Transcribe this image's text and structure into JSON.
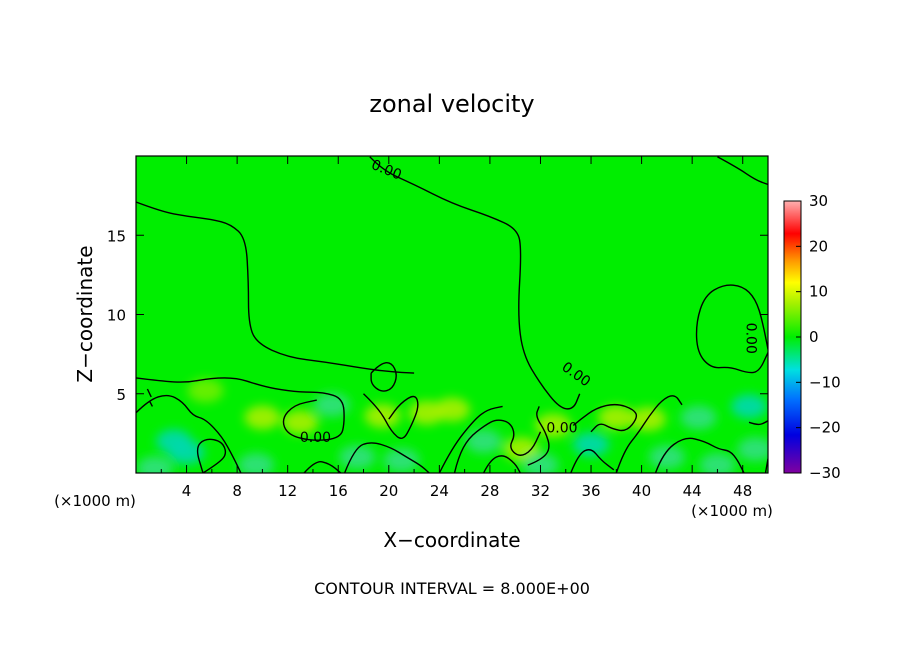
{
  "chart_data": {
    "type": "heatmap",
    "title": "zonal velocity",
    "xlabel": "X−coordinate",
    "ylabel": "Z−coordinate",
    "x_unit_left": "(×1000 m)",
    "x_unit_right": "(×1000 m)",
    "footer": "CONTOUR INTERVAL = 8.000E+00",
    "xlim": [
      0,
      50
    ],
    "ylim": [
      0,
      20
    ],
    "x_ticks": [
      4,
      8,
      12,
      16,
      20,
      24,
      28,
      32,
      36,
      40,
      44,
      48
    ],
    "x_tick_labels": [
      "4",
      "8",
      "12",
      "16",
      "20",
      "24",
      "28",
      "32",
      "36",
      "40",
      "44",
      "48"
    ],
    "y_ticks": [
      5,
      10,
      15
    ],
    "y_tick_labels": [
      "5",
      "10",
      "15"
    ],
    "colorbar": {
      "min": -30,
      "max": 30,
      "ticks": [
        30,
        20,
        10,
        0,
        -10,
        -20,
        -30
      ],
      "tick_labels": [
        "30",
        "20",
        "10",
        "0",
        "−10",
        "−20",
        "−30"
      ]
    },
    "field_background_value": 0,
    "field_background_color": "#00ee00",
    "contour_labels": [
      {
        "text": "0.00",
        "x": 19.8,
        "z": 19.1,
        "angle": 22
      },
      {
        "text": "0.00",
        "x": 14.2,
        "z": 2.2,
        "angle": 0
      },
      {
        "text": "0.00",
        "x": 33.7,
        "z": 2.8,
        "angle": 0
      },
      {
        "text": "0.00",
        "x": 34.8,
        "z": 6.2,
        "angle": 35
      },
      {
        "text": "0.00",
        "x": 48.6,
        "z": 8.5,
        "angle": 90
      }
    ],
    "contours": [
      [
        [
          0,
          17.1
        ],
        [
          2,
          16.5
        ],
        [
          4,
          16.2
        ],
        [
          6,
          16.0
        ],
        [
          7.5,
          15.7
        ],
        [
          8.7,
          14.8
        ],
        [
          8.9,
          12
        ],
        [
          8.9,
          9.5
        ],
        [
          9.5,
          8.2
        ],
        [
          12,
          7.3
        ],
        [
          15,
          7
        ],
        [
          18,
          6.6
        ],
        [
          20,
          6.4
        ],
        [
          22,
          6.3
        ]
      ],
      [
        [
          18.5,
          19.95
        ],
        [
          19.5,
          19.1
        ],
        [
          22,
          18.2
        ],
        [
          25,
          17.0
        ],
        [
          28,
          16.2
        ],
        [
          30.2,
          15.4
        ],
        [
          30.5,
          14
        ],
        [
          30.2,
          10
        ],
        [
          30.6,
          7.5
        ],
        [
          32,
          5.6
        ],
        [
          33.5,
          4.1
        ],
        [
          34.6,
          4.0
        ],
        [
          35.1,
          5.0
        ]
      ],
      [
        [
          46,
          19.95
        ],
        [
          47.5,
          19.3
        ],
        [
          49,
          18.5
        ],
        [
          50,
          18.2
        ]
      ],
      [
        [
          50,
          7.8
        ],
        [
          49.6,
          9.5
        ],
        [
          49,
          11
        ],
        [
          48,
          11.8
        ],
        [
          46.5,
          11.9
        ],
        [
          45,
          11.2
        ],
        [
          44.3,
          9.5
        ],
        [
          44.4,
          7.6
        ],
        [
          45.5,
          6.6
        ],
        [
          47,
          6.7
        ],
        [
          48.4,
          6.3
        ],
        [
          49.3,
          6.4
        ],
        [
          50,
          7.6
        ]
      ],
      [
        [
          0,
          6.0
        ],
        [
          2,
          5.8
        ],
        [
          4,
          5.7
        ],
        [
          6,
          6.0
        ],
        [
          8,
          6.0
        ],
        [
          9.5,
          5.6
        ],
        [
          11,
          5.3
        ],
        [
          13,
          5.1
        ],
        [
          14.8,
          5.1
        ],
        [
          16.4,
          4.7
        ],
        [
          16.5,
          3.2
        ],
        [
          16.2,
          2.2
        ],
        [
          14,
          2.0
        ],
        [
          12,
          2.4
        ],
        [
          11.5,
          3.4
        ],
        [
          12.5,
          4.3
        ],
        [
          14.3,
          4.6
        ]
      ],
      [
        [
          0,
          3.8
        ],
        [
          1,
          4.6
        ],
        [
          2.5,
          5.0
        ],
        [
          3.7,
          4.5
        ],
        [
          4.5,
          3.6
        ],
        [
          5.5,
          3.4
        ],
        [
          6.8,
          2.3
        ],
        [
          7.7,
          1.0
        ],
        [
          8.3,
          0.0
        ]
      ],
      [
        [
          5.3,
          0
        ],
        [
          6.5,
          0.6
        ],
        [
          7.2,
          1.2
        ],
        [
          6.8,
          2.0
        ],
        [
          5.5,
          2.2
        ],
        [
          4.7,
          1.6
        ],
        [
          5.3,
          0
        ]
      ],
      [
        [
          13.3,
          0
        ],
        [
          14.2,
          0.8
        ],
        [
          15.3,
          0.6
        ],
        [
          16.2,
          0
        ]
      ],
      [
        [
          18,
          5.0
        ],
        [
          19.3,
          4.0
        ],
        [
          20.2,
          2.6
        ],
        [
          21.1,
          2.0
        ],
        [
          21.8,
          3.0
        ],
        [
          22.4,
          4.2
        ],
        [
          22.1,
          5.0
        ],
        [
          20.9,
          4.4
        ],
        [
          20.0,
          3.4
        ]
      ],
      [
        [
          16.5,
          0
        ],
        [
          17.3,
          1.6
        ],
        [
          18.6,
          2.0
        ],
        [
          20.2,
          1.6
        ],
        [
          21.4,
          1.0
        ],
        [
          22.5,
          0.5
        ],
        [
          23.2,
          0
        ]
      ],
      [
        [
          18.6,
          6.3
        ],
        [
          19.3,
          6.9
        ],
        [
          20.2,
          7.0
        ],
        [
          20.7,
          6.2
        ],
        [
          20.3,
          5.3
        ],
        [
          19.4,
          5.1
        ],
        [
          18.6,
          5.6
        ],
        [
          18.6,
          6.3
        ]
      ],
      [
        [
          25.2,
          0
        ],
        [
          25.5,
          1.0
        ],
        [
          26.3,
          2.2
        ],
        [
          27.6,
          3.0
        ],
        [
          28.5,
          3.4
        ],
        [
          29.6,
          3.2
        ],
        [
          30.0,
          2.4
        ],
        [
          29.5,
          1.6
        ],
        [
          30.3,
          1.0
        ],
        [
          31.3,
          1.4
        ],
        [
          32.0,
          2.6
        ]
      ],
      [
        [
          24.0,
          0
        ],
        [
          25.0,
          1.6
        ],
        [
          26.8,
          3.4
        ],
        [
          27.8,
          4.0
        ],
        [
          29.0,
          4.2
        ]
      ],
      [
        [
          27.5,
          0
        ],
        [
          28.0,
          0.8
        ],
        [
          29.0,
          1.2
        ],
        [
          30.0,
          0.6
        ],
        [
          30.4,
          0
        ]
      ],
      [
        [
          31.0,
          0.5
        ],
        [
          32.0,
          0.8
        ],
        [
          32.8,
          1.5
        ],
        [
          32.4,
          2.6
        ],
        [
          31.6,
          3.6
        ],
        [
          31.9,
          4.2
        ]
      ],
      [
        [
          34.6,
          3.0
        ],
        [
          35.2,
          3.4
        ],
        [
          36.4,
          4.1
        ],
        [
          38.0,
          4.4
        ],
        [
          39.4,
          4.0
        ],
        [
          39.7,
          3.5
        ],
        [
          38.8,
          2.6
        ],
        [
          37.6,
          2.8
        ],
        [
          36.7,
          3.2
        ],
        [
          36.0,
          2.6
        ]
      ],
      [
        [
          34.4,
          0
        ],
        [
          35.0,
          1.2
        ],
        [
          36.0,
          1.6
        ],
        [
          36.8,
          0.8
        ],
        [
          37.8,
          0.2
        ]
      ],
      [
        [
          38.0,
          0
        ],
        [
          38.6,
          1.4
        ],
        [
          39.8,
          2.6
        ],
        [
          40.6,
          3.6
        ],
        [
          41.6,
          4.6
        ],
        [
          42.6,
          5.0
        ],
        [
          43.2,
          4.3
        ]
      ],
      [
        [
          41.1,
          0
        ],
        [
          41.7,
          1.3
        ],
        [
          43.4,
          2.3
        ],
        [
          45.0,
          2.0
        ],
        [
          46.1,
          1.5
        ],
        [
          47.0,
          1.4
        ],
        [
          47.6,
          0.8
        ],
        [
          48.1,
          0
        ]
      ],
      [
        [
          49.8,
          0
        ],
        [
          50,
          0.9
        ]
      ],
      [
        [
          48.5,
          3.2
        ],
        [
          49.2,
          3.0
        ],
        [
          49.8,
          3.2
        ],
        [
          50,
          3.3
        ]
      ],
      [
        [
          0.9,
          5.3
        ],
        [
          1.2,
          4.8
        ]
      ],
      [
        [
          1.1,
          4.5
        ],
        [
          1.3,
          4.2
        ]
      ]
    ],
    "blobs": [
      {
        "x": 3,
        "z": 2,
        "value": -3
      },
      {
        "x": 4,
        "z": 1.3,
        "value": -3
      },
      {
        "x": 1.5,
        "z": 0.3,
        "value": -2
      },
      {
        "x": 10,
        "z": 3.5,
        "value": 2
      },
      {
        "x": 13,
        "z": 3.2,
        "value": 2
      },
      {
        "x": 9.5,
        "z": 0.5,
        "value": -2
      },
      {
        "x": 15.5,
        "z": 4.3,
        "value": -2
      },
      {
        "x": 17.5,
        "z": 1.0,
        "value": -2
      },
      {
        "x": 19.5,
        "z": 3.6,
        "value": 2
      },
      {
        "x": 21,
        "z": 0.8,
        "value": -2
      },
      {
        "x": 23,
        "z": 3.8,
        "value": 2
      },
      {
        "x": 25,
        "z": 4.0,
        "value": 2
      },
      {
        "x": 27.5,
        "z": 2.0,
        "value": -2
      },
      {
        "x": 30.5,
        "z": 1.5,
        "value": 2
      },
      {
        "x": 32,
        "z": 0.5,
        "value": -2
      },
      {
        "x": 33,
        "z": 3.0,
        "value": 2
      },
      {
        "x": 36,
        "z": 1.8,
        "value": -3
      },
      {
        "x": 38,
        "z": 3.5,
        "value": 2
      },
      {
        "x": 40.5,
        "z": 3.4,
        "value": 2
      },
      {
        "x": 42,
        "z": 1.0,
        "value": -2
      },
      {
        "x": 44.5,
        "z": 3.5,
        "value": -2
      },
      {
        "x": 46,
        "z": 0.5,
        "value": -2
      },
      {
        "x": 48.5,
        "z": 4.2,
        "value": -3
      },
      {
        "x": 49,
        "z": 1.5,
        "value": -2
      },
      {
        "x": 5.5,
        "z": 5.2,
        "value": 1
      }
    ]
  }
}
